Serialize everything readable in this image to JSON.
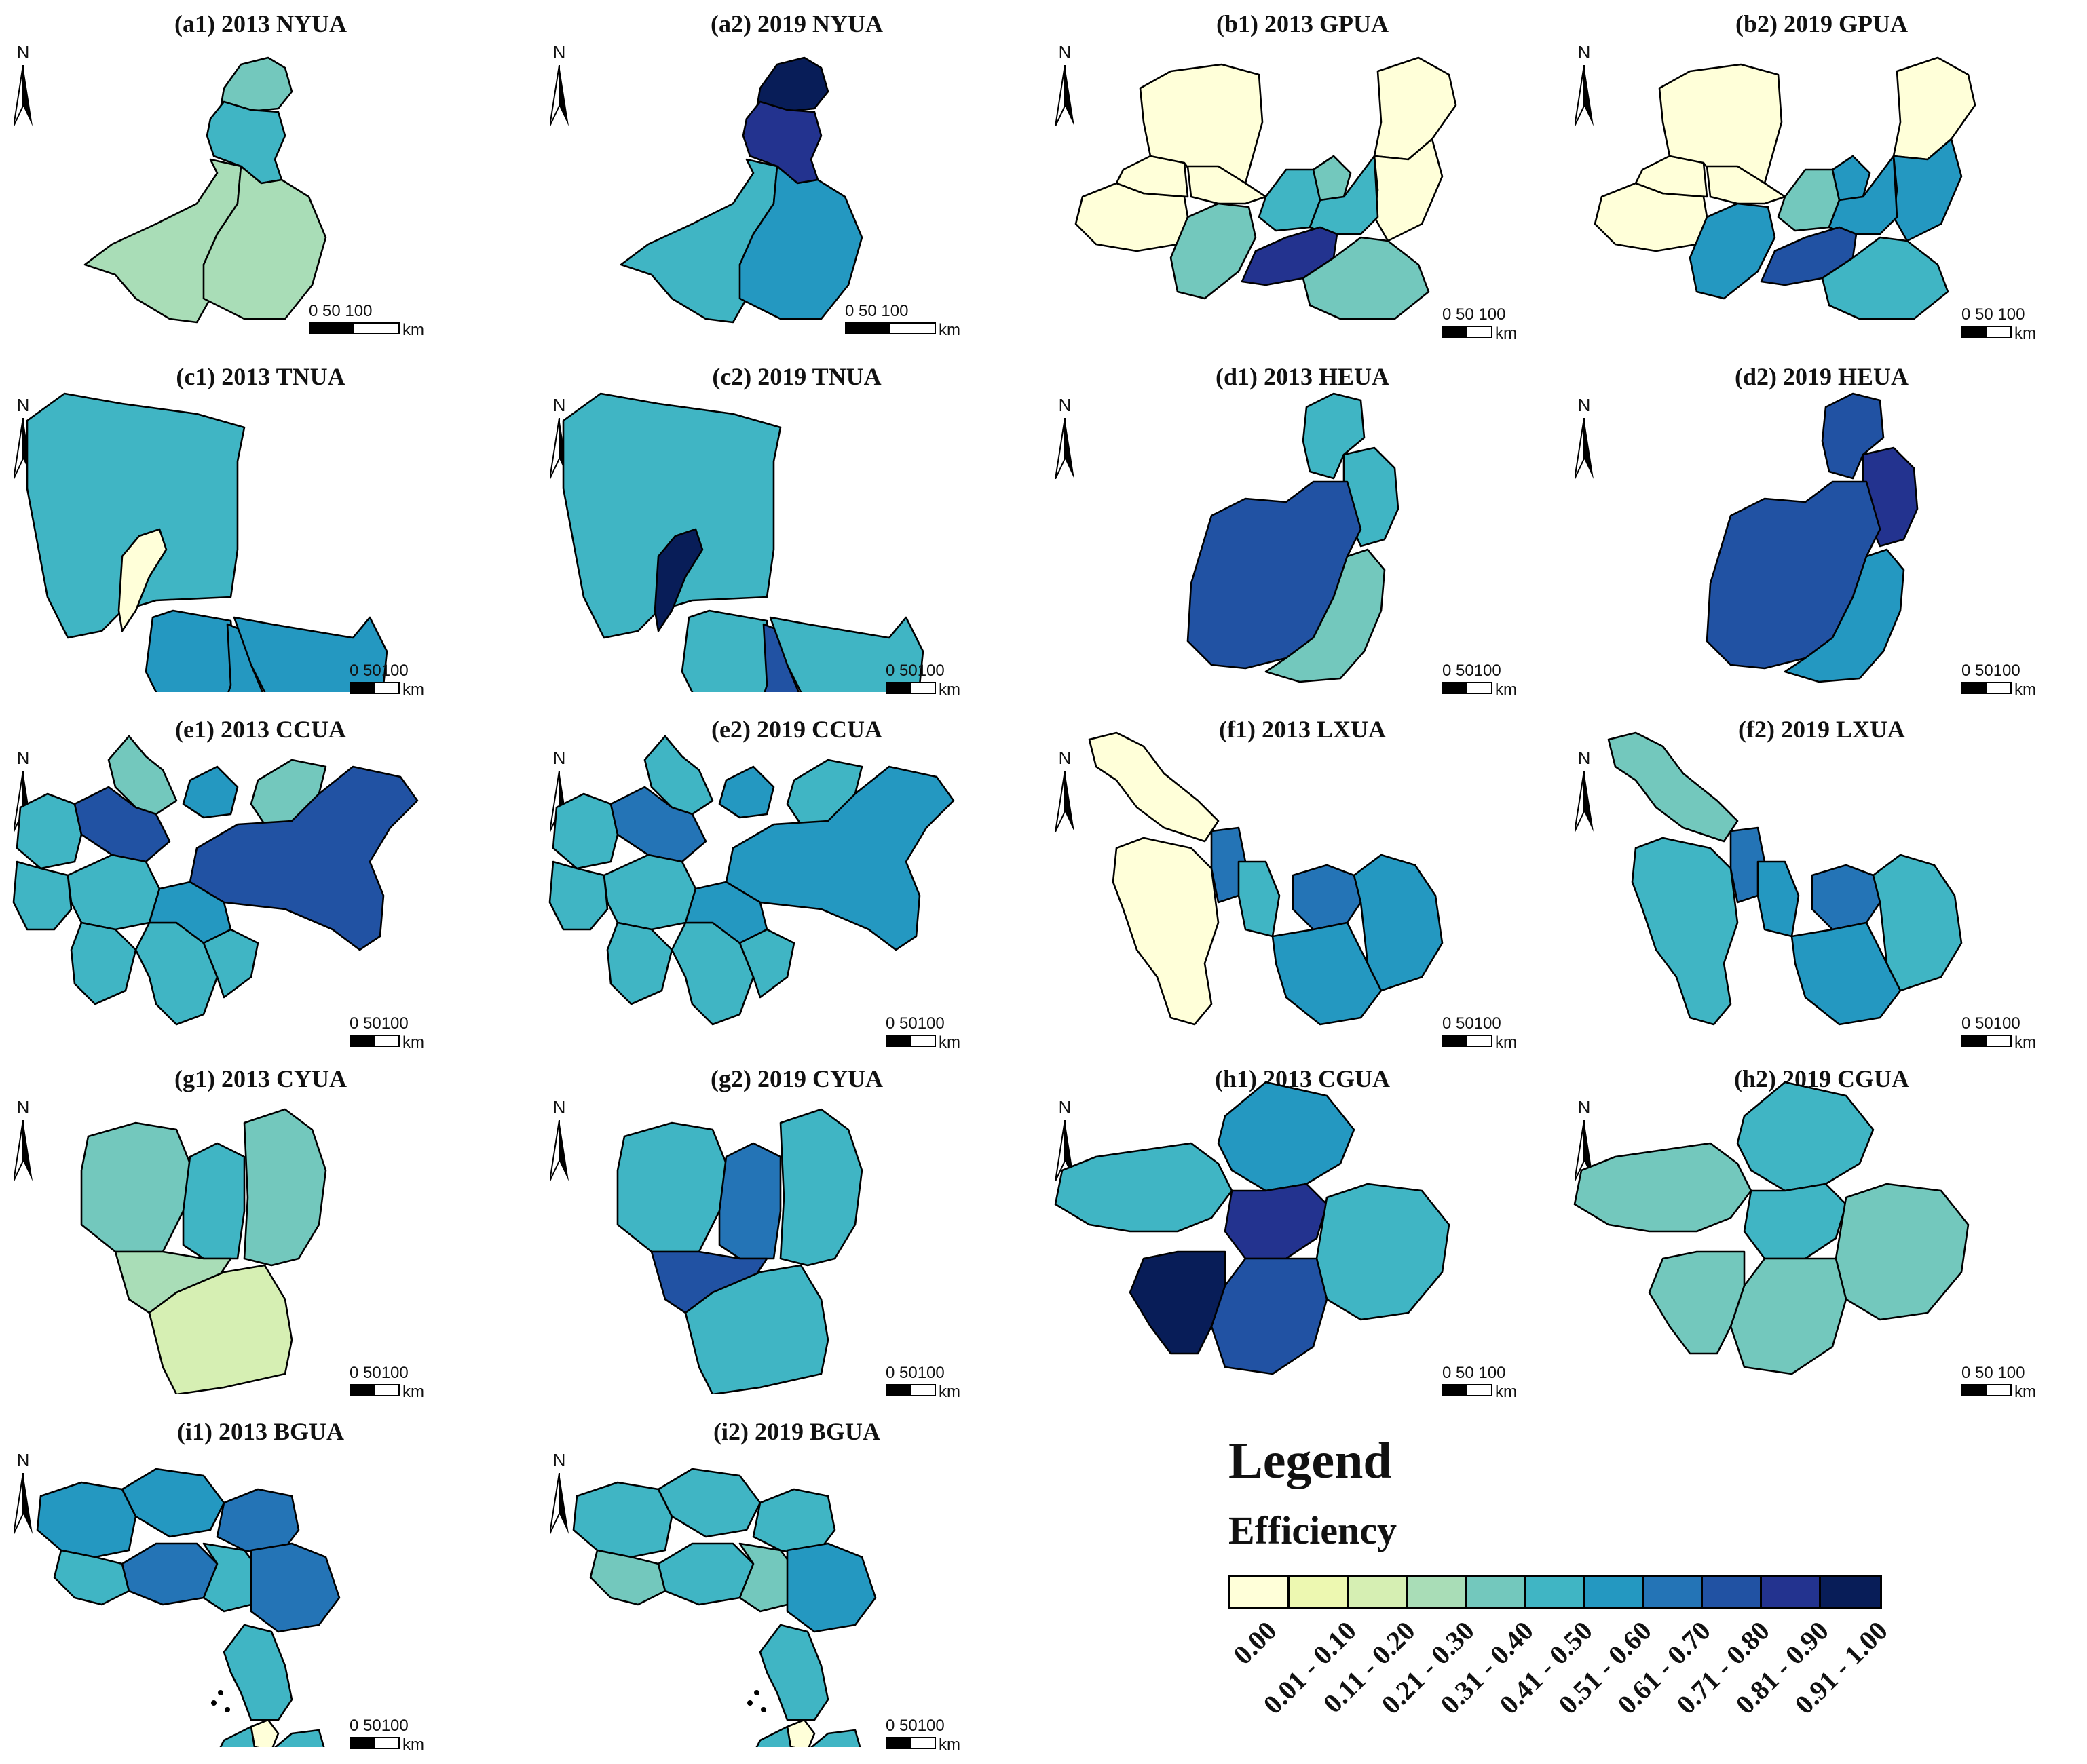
{
  "legend": {
    "title": "Legend",
    "subtitle": "Efficiency",
    "classes": [
      {
        "label": "0.00",
        "color": "#ffffd9"
      },
      {
        "label": "0.01 - 0.10",
        "color": "#edf8b1"
      },
      {
        "label": "0.11 - 0.20",
        "color": "#d6efb3"
      },
      {
        "label": "0.21 - 0.30",
        "color": "#a9ddb7"
      },
      {
        "label": "0.31 - 0.40",
        "color": "#73c8bd"
      },
      {
        "label": "0.41 - 0.50",
        "color": "#40b5c4"
      },
      {
        "label": "0.51 - 0.60",
        "color": "#2498c1"
      },
      {
        "label": "0.61 - 0.70",
        "color": "#2474b6"
      },
      {
        "label": "0.71 - 0.80",
        "color": "#2152a3"
      },
      {
        "label": "0.81 - 0.90",
        "color": "#23338f"
      },
      {
        "label": "0.91 - 1.00",
        "color": "#081d58"
      }
    ]
  },
  "north_label": "N",
  "unit_label": "km",
  "panels": [
    {
      "id": "a1",
      "title": "(a1) 2013 NYUA",
      "scale": "0   50   100",
      "shape": "nyua",
      "classes": [
        4,
        5,
        3,
        3
      ]
    },
    {
      "id": "a2",
      "title": "(a2) 2019 NYUA",
      "scale": "0   50   100",
      "shape": "nyua",
      "classes": [
        10,
        9,
        5,
        6
      ]
    },
    {
      "id": "b1",
      "title": "(b1) 2013 GPUA",
      "scale": "0  50 100",
      "shape": "gpua",
      "classes": [
        0,
        0,
        0,
        0,
        0,
        0,
        4,
        5,
        4,
        5,
        9,
        4
      ]
    },
    {
      "id": "b2",
      "title": "(b2) 2019 GPUA",
      "scale": "0  50 100",
      "shape": "gpua",
      "classes": [
        0,
        0,
        0,
        0,
        0,
        6,
        6,
        4,
        6,
        6,
        8,
        5
      ]
    },
    {
      "id": "c1",
      "title": "(c1) 2013 TNUA",
      "scale": "0  50100",
      "shape": "tnua",
      "classes": [
        5,
        0,
        6,
        6,
        6
      ]
    },
    {
      "id": "c2",
      "title": "(c2) 2019 TNUA",
      "scale": "0  50100",
      "shape": "tnua",
      "classes": [
        5,
        10,
        5,
        8,
        5
      ]
    },
    {
      "id": "d1",
      "title": "(d1) 2013 HEUA",
      "scale": "0  50100",
      "shape": "heua",
      "classes": [
        5,
        5,
        8,
        4
      ]
    },
    {
      "id": "d2",
      "title": "(d2) 2019 HEUA",
      "scale": "0  50100",
      "shape": "heua",
      "classes": [
        8,
        9,
        8,
        6
      ]
    },
    {
      "id": "e1",
      "title": "(e1) 2013 CCUA",
      "scale": "0  50100",
      "shape": "ccua",
      "classes": [
        5,
        4,
        8,
        6,
        4,
        8,
        5,
        5,
        5,
        5,
        6,
        5
      ]
    },
    {
      "id": "e2",
      "title": "(e2) 2019 CCUA",
      "scale": "0  50100",
      "shape": "ccua",
      "classes": [
        5,
        5,
        7,
        6,
        5,
        6,
        5,
        5,
        5,
        5,
        6,
        5
      ]
    },
    {
      "id": "f1",
      "title": "(f1) 2013 LXUA",
      "scale": "0  50100",
      "shape": "lxua",
      "classes": [
        0,
        0,
        7,
        5,
        7,
        6,
        6
      ]
    },
    {
      "id": "f2",
      "title": "(f2) 2019 LXUA",
      "scale": "0  50100",
      "shape": "lxua",
      "classes": [
        4,
        5,
        7,
        6,
        7,
        6,
        5
      ]
    },
    {
      "id": "g1",
      "title": "(g1) 2013 CYUA",
      "scale": "0  50100",
      "shape": "cyua",
      "classes": [
        4,
        5,
        4,
        3,
        2
      ]
    },
    {
      "id": "g2",
      "title": "(g2) 2019 CYUA",
      "scale": "0  50100",
      "shape": "cyua",
      "classes": [
        5,
        7,
        5,
        8,
        5
      ]
    },
    {
      "id": "h1",
      "title": "(h1) 2013 CGUA",
      "scale": "0  50 100",
      "shape": "cgua",
      "classes": [
        6,
        5,
        9,
        5,
        8,
        10
      ]
    },
    {
      "id": "h2",
      "title": "(h2) 2019 CGUA",
      "scale": "0  50 100",
      "shape": "cgua",
      "classes": [
        5,
        4,
        5,
        4,
        4,
        4
      ]
    },
    {
      "id": "i1",
      "title": "(i1) 2013 BGUA",
      "scale": "0  50100",
      "shape": "bgua",
      "classes": [
        6,
        6,
        7,
        5,
        7,
        5,
        7,
        0,
        5
      ]
    },
    {
      "id": "i2",
      "title": "(i2) 2019 BGUA",
      "scale": "0  50100",
      "shape": "bgua",
      "classes": [
        5,
        5,
        5,
        4,
        5,
        4,
        6,
        0,
        5
      ]
    }
  ]
}
